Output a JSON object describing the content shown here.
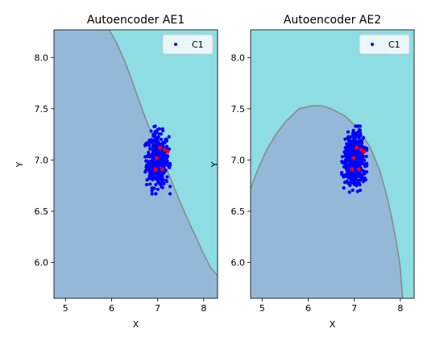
{
  "colors": {
    "region_inside": "#94b8d8",
    "region_outside": "#8ddde3",
    "boundary": "#888888",
    "points": "#0000ff",
    "anomalies": "#ff0000",
    "legend_face": "#eaf6f8"
  },
  "chart_data": [
    {
      "type": "scatter",
      "title": "Autoencoder AE1",
      "xlabel": "X",
      "ylabel": "Y",
      "xlim": [
        4.75,
        8.3
      ],
      "ylim": [
        5.65,
        8.27
      ],
      "xticks": [
        5,
        6,
        7,
        8
      ],
      "yticks": [
        6.0,
        6.5,
        7.0,
        7.5,
        8.0
      ],
      "xtick_labels": [
        "5",
        "6",
        "7",
        "8"
      ],
      "ytick_labels": [
        "6.0",
        "6.5",
        "7.0",
        "7.5",
        "8.0"
      ],
      "legend": {
        "placement": "top-right",
        "entries": [
          "C1"
        ]
      },
      "cluster": {
        "center": [
          7.0,
          7.0
        ],
        "spread": [
          0.12,
          0.13
        ],
        "count": 420
      },
      "anomalies": [
        [
          7.05,
          7.12
        ],
        [
          7.15,
          7.1
        ],
        [
          7.22,
          7.08
        ],
        [
          6.98,
          7.02
        ],
        [
          6.95,
          6.91
        ],
        [
          7.1,
          6.91
        ]
      ],
      "boundary": [
        [
          5.95,
          8.27
        ],
        [
          6.1,
          8.15
        ],
        [
          6.3,
          7.95
        ],
        [
          6.5,
          7.7
        ],
        [
          6.7,
          7.45
        ],
        [
          6.9,
          7.22
        ],
        [
          7.05,
          7.05
        ],
        [
          7.25,
          6.85
        ],
        [
          7.45,
          6.63
        ],
        [
          7.62,
          6.45
        ],
        [
          7.8,
          6.28
        ],
        [
          8.0,
          6.08
        ],
        [
          8.15,
          5.95
        ],
        [
          8.3,
          5.87
        ]
      ]
    },
    {
      "type": "scatter",
      "title": "Autoencoder AE2",
      "xlabel": "X",
      "ylabel": "Y",
      "xlim": [
        4.75,
        8.3
      ],
      "ylim": [
        5.65,
        8.27
      ],
      "xticks": [
        5,
        6,
        7,
        8
      ],
      "yticks": [
        6.0,
        6.5,
        7.0,
        7.5,
        8.0
      ],
      "xtick_labels": [
        "5",
        "6",
        "7",
        "8"
      ],
      "ytick_labels": [
        "6.0",
        "6.5",
        "7.0",
        "7.5",
        "8.0"
      ],
      "legend": {
        "placement": "top-right",
        "entries": [
          "C1"
        ]
      },
      "cluster": {
        "center": [
          7.0,
          7.0
        ],
        "spread": [
          0.12,
          0.13
        ],
        "count": 420
      },
      "anomalies": [
        [
          7.05,
          7.12
        ],
        [
          7.15,
          7.1
        ],
        [
          7.22,
          7.08
        ],
        [
          6.98,
          7.02
        ],
        [
          6.95,
          6.91
        ],
        [
          7.1,
          6.91
        ]
      ],
      "boundary": [
        [
          4.75,
          6.72
        ],
        [
          4.9,
          6.9
        ],
        [
          5.1,
          7.1
        ],
        [
          5.3,
          7.25
        ],
        [
          5.5,
          7.37
        ],
        [
          5.8,
          7.5
        ],
        [
          6.1,
          7.53
        ],
        [
          6.3,
          7.53
        ],
        [
          6.5,
          7.5
        ],
        [
          6.8,
          7.43
        ],
        [
          7.1,
          7.3
        ],
        [
          7.35,
          7.12
        ],
        [
          7.55,
          6.9
        ],
        [
          7.7,
          6.66
        ],
        [
          7.82,
          6.42
        ],
        [
          7.92,
          6.18
        ],
        [
          8.0,
          5.95
        ],
        [
          8.05,
          5.65
        ]
      ]
    }
  ]
}
